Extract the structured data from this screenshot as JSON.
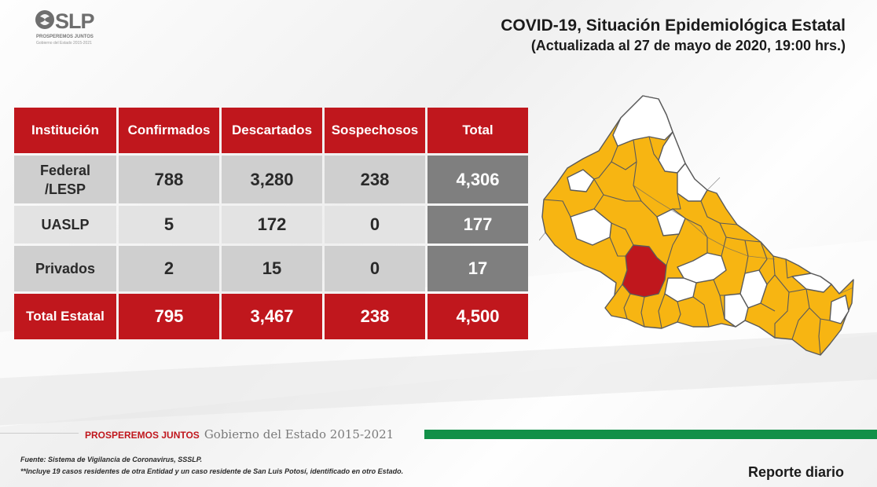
{
  "logo": {
    "text": "SLP",
    "subtitle": "PROSPEREMOS JUNTOS",
    "subtitle2": "Gobierno del Estado 2015-2021"
  },
  "header": {
    "title": "COVID-19, Situación Epidemiológica Estatal",
    "subtitle": "(Actualizada al 27 de mayo de 2020, 19:00 hrs.)"
  },
  "table": {
    "headers": [
      "Institución",
      "Confirmados",
      "Descartados",
      "Sospechosos",
      "Total"
    ],
    "rows": [
      {
        "institucion": "Federal /LESP",
        "confirmados": "788",
        "descartados": "3,280",
        "sospechosos": "238",
        "total": "4,306"
      },
      {
        "institucion": "UASLP",
        "confirmados": "5",
        "descartados": "172",
        "sospechosos": "0",
        "total": "177"
      },
      {
        "institucion": "Privados",
        "confirmados": "2",
        "descartados": "15",
        "sospechosos": "0",
        "total": "17"
      }
    ],
    "total_row": {
      "institucion": "Total Estatal",
      "confirmados": "795",
      "descartados": "3,467",
      "sospechosos": "238",
      "total": "4,500"
    }
  },
  "map": {
    "colors": {
      "affected": "#f7b512",
      "highlight": "#c0171d",
      "unaffected": "#ffffff",
      "border": "#5a5a5a"
    }
  },
  "footer": {
    "brand_red": "PROSPEREMOS JUNTOS",
    "brand_gray": "Gobierno del Estado 2015-2021",
    "source": "Fuente: Sistema de Vigilancia de Coronavirus, SSSLP.",
    "note": "**Incluye 19 casos residentes de otra Entidad y un caso residente de San Luis Potosí, identificado en otro Estado.",
    "report": "Reporte diario"
  },
  "colors": {
    "red": "#c0171d",
    "green": "#129048",
    "gray": "#7f7f7f"
  }
}
